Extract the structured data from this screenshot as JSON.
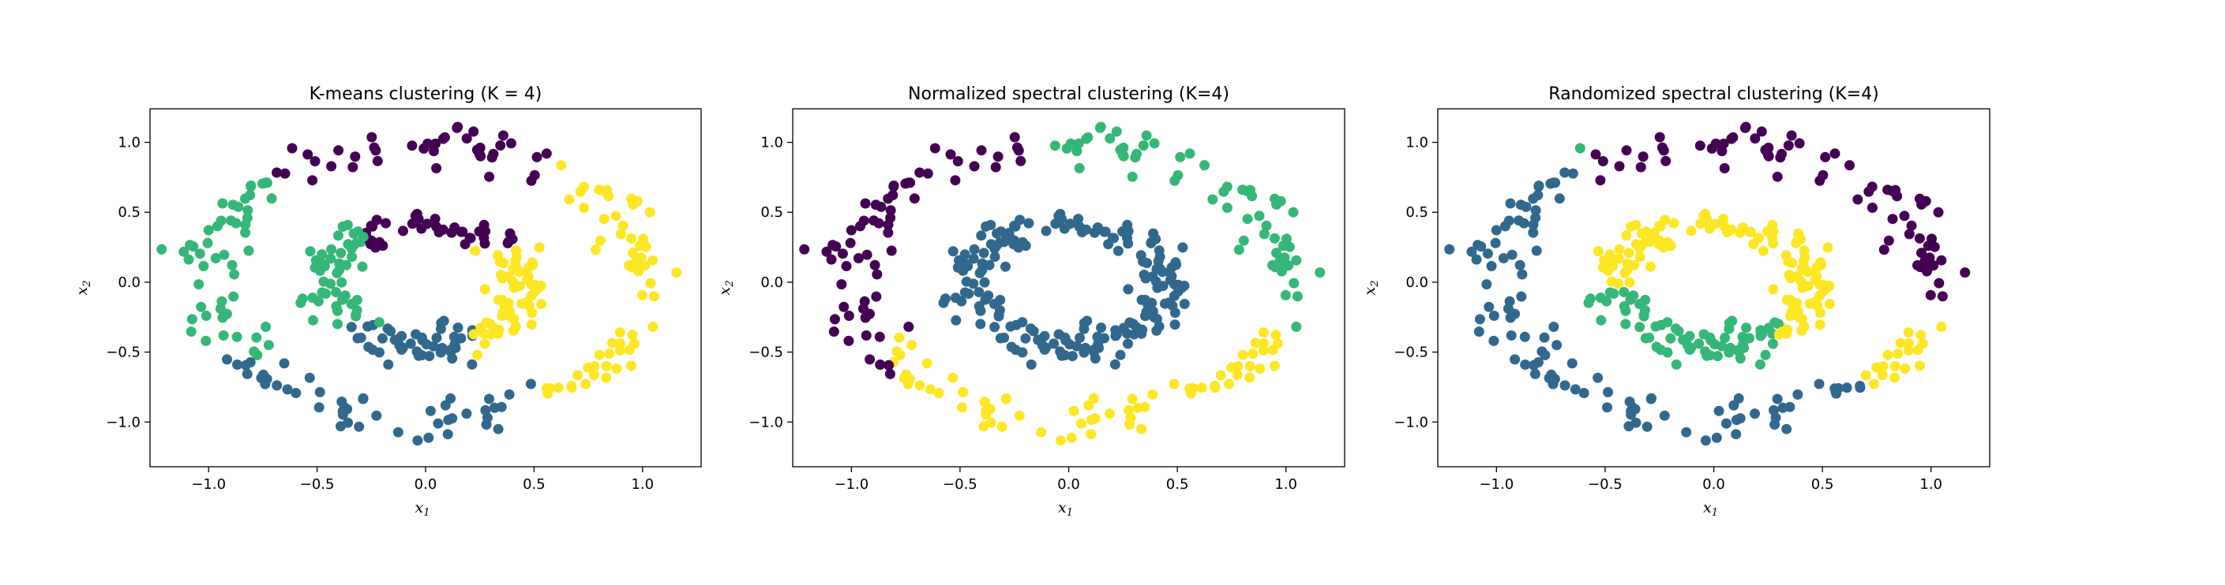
{
  "figure": {
    "xlabel_base": "x",
    "xlabel_sub": "1",
    "ylabel_base": "x",
    "ylabel_sub": "2"
  },
  "chart_data": [
    {
      "type": "scatter",
      "title": "K-means clustering (K = 4)",
      "xlim": [
        -1.27,
        1.27
      ],
      "ylim": [
        -1.32,
        1.24
      ],
      "xticks": [
        -1.0,
        -0.5,
        0.0,
        0.5,
        1.0
      ],
      "xtick_labels": [
        "−1.0",
        "−0.5",
        "0.0",
        "0.5",
        "1.0"
      ],
      "yticks": [
        -1.0,
        -0.5,
        0.0,
        0.5,
        1.0
      ],
      "ytick_labels": [
        "−1.0",
        "−0.5",
        "0.0",
        "0.5",
        "1.0"
      ],
      "grid": false,
      "palette": [
        "#440154",
        "#31688e",
        "#35b779",
        "#fde725"
      ],
      "dataset": "two-rings",
      "labeling": "kmeans"
    },
    {
      "type": "scatter",
      "title": "Normalized spectral clustering (K=4)",
      "xlim": [
        -1.27,
        1.27
      ],
      "ylim": [
        -1.32,
        1.24
      ],
      "xticks": [
        -1.0,
        -0.5,
        0.0,
        0.5,
        1.0
      ],
      "xtick_labels": [
        "−1.0",
        "−0.5",
        "0.0",
        "0.5",
        "1.0"
      ],
      "yticks": [
        -1.0,
        -0.5,
        0.0,
        0.5,
        1.0
      ],
      "ytick_labels": [
        "−1.0",
        "−0.5",
        "0.0",
        "0.5",
        "1.0"
      ],
      "grid": false,
      "palette": [
        "#440154",
        "#31688e",
        "#35b779",
        "#fde725"
      ],
      "dataset": "two-rings",
      "labeling": "normalized-spectral"
    },
    {
      "type": "scatter",
      "title": "Randomized spectral clustering (K=4)",
      "xlim": [
        -1.27,
        1.27
      ],
      "ylim": [
        -1.32,
        1.24
      ],
      "xticks": [
        -1.0,
        -0.5,
        0.0,
        0.5,
        1.0
      ],
      "xtick_labels": [
        "−1.0",
        "−0.5",
        "0.0",
        "0.5",
        "1.0"
      ],
      "yticks": [
        -1.0,
        -0.5,
        0.0,
        0.5,
        1.0
      ],
      "ytick_labels": [
        "−1.0",
        "−0.5",
        "0.0",
        "0.5",
        "1.0"
      ],
      "grid": false,
      "palette": [
        "#440154",
        "#31688e",
        "#35b779",
        "#fde725"
      ],
      "dataset": "two-rings",
      "labeling": "randomized-spectral"
    }
  ]
}
